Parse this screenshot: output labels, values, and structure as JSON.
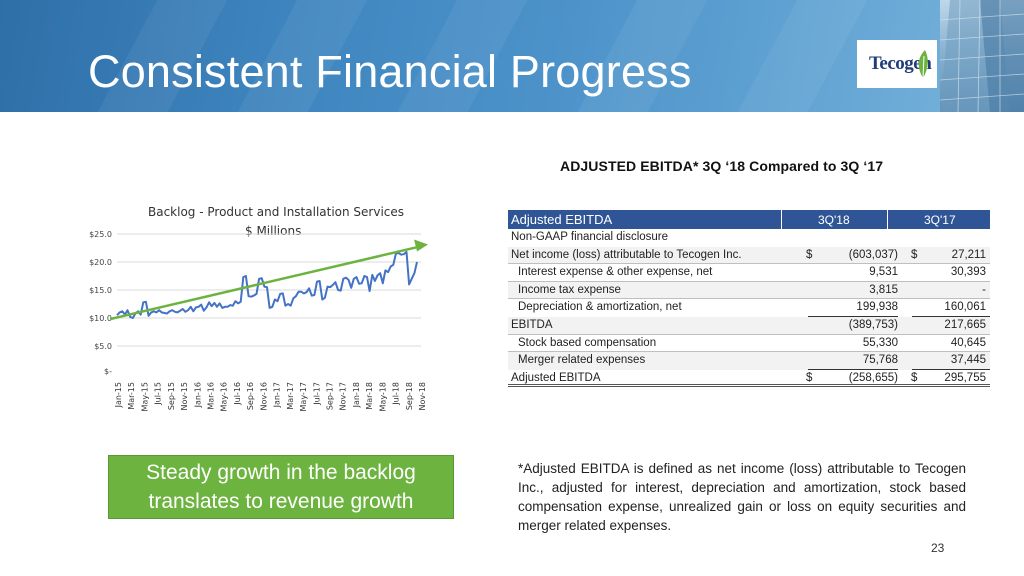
{
  "header": {
    "title": "Consistent Financial Progress",
    "logo_text": "Tecogen",
    "colors": {
      "band": "#3f86c0",
      "logo_text": "#1f3d78",
      "leaf": "#6cb33f"
    }
  },
  "chart_data": {
    "type": "line",
    "title": "Backlog - Product and Installation Services",
    "ylabel": "$ Millions",
    "xlabel": "",
    "ylim": [
      0,
      25
    ],
    "yticks": [
      0,
      5,
      10,
      15,
      20,
      25
    ],
    "ytick_labels": [
      "$-",
      "$5.0",
      "$10.0",
      "$15.0",
      "$20.0",
      "$25.0"
    ],
    "xtick_labels": [
      "Jan-15",
      "Mar-15",
      "May-15",
      "Jul-15",
      "Sep-15",
      "Nov-15",
      "Jan-16",
      "Mar-16",
      "May-16",
      "Jul-16",
      "Sep-16",
      "Nov-16",
      "Jan-17",
      "Mar-17",
      "May-17",
      "Jul-17",
      "Sep-17",
      "Nov-17",
      "Jan-18",
      "Mar-18",
      "May-18",
      "Jul-18",
      "Sep-18",
      "Nov-18"
    ],
    "grid": "horizontal",
    "series": [
      {
        "color": "#4472c4",
        "values": [
          10.5,
          11.0,
          11.2,
          10.6,
          11.4,
          10.2,
          10.0,
          10.8,
          11.2,
          10.6,
          12.8,
          12.9,
          10.4,
          11.0,
          11.2,
          11.0,
          11.4,
          11.0,
          10.9,
          10.8,
          11.2,
          11.4,
          11.1,
          11.0,
          11.3,
          11.6,
          11.1,
          11.4,
          12.0,
          11.2,
          11.9,
          12.0,
          12.4,
          11.3,
          11.9,
          12.8,
          12.1,
          12.7,
          12.0,
          12.6,
          11.8,
          12.0,
          12.0,
          12.3,
          12.2,
          13.0,
          12.6,
          12.9,
          17.3,
          17.5,
          13.9,
          13.8,
          14.0,
          14.3,
          17.0,
          17.1,
          15.6,
          15.5,
          11.8,
          12.0,
          13.3,
          13.0,
          14.3,
          14.4,
          12.2,
          12.5,
          12.2,
          13.5,
          13.9,
          14.7,
          14.7,
          14.4,
          14.6,
          15.3,
          14.0,
          14.1,
          16.5,
          16.6,
          13.3,
          13.6,
          15.6,
          15.5,
          15.9,
          16.4,
          15.0,
          14.9,
          17.0,
          17.2,
          16.8,
          15.4,
          17.0,
          17.3,
          16.1,
          16.2,
          17.5,
          17.3,
          14.8,
          17.7,
          16.6,
          17.6,
          18.0,
          16.2,
          18.5,
          18.2,
          19.2,
          19.5,
          21.5,
          21.6,
          21.3,
          21.4,
          21.8,
          16.0,
          17.0,
          18.0,
          20.0
        ]
      },
      {
        "type": "trendline",
        "color": "#6cb33f",
        "values": [
          9.8,
          22.6
        ]
      }
    ]
  },
  "ebitda": {
    "heading": "ADJUSTED EBITDA* 3Q ‘18 Compared to 3Q ‘17",
    "header": {
      "label": "Adjusted EBITDA",
      "col1": "3Q'18",
      "col2": "3Q'17"
    },
    "subheader": "Non-GAAP financial disclosure",
    "rows": [
      {
        "label": "Net income (loss) attributable to Tecogen Inc.",
        "d1": "$",
        "v1": "(603,037)",
        "d2": "$",
        "v2": "27,211"
      },
      {
        "label": "Interest expense & other expense, net",
        "d1": "",
        "v1": "9,531",
        "d2": "",
        "v2": "30,393"
      },
      {
        "label": "Income tax expense",
        "d1": "",
        "v1": "3,815",
        "d2": "",
        "v2": "-"
      },
      {
        "label": "Depreciation & amortization, net",
        "d1": "",
        "v1": "199,938",
        "d2": "",
        "v2": "160,061"
      },
      {
        "label": "EBITDA",
        "d1": "",
        "v1": "(389,753)",
        "d2": "",
        "v2": "217,665"
      },
      {
        "label": "Stock based compensation",
        "d1": "",
        "v1": "55,330",
        "d2": "",
        "v2": "40,645"
      },
      {
        "label": "Merger related expenses",
        "d1": "",
        "v1": "75,768",
        "d2": "",
        "v2": "37,445"
      },
      {
        "label": "Adjusted EBITDA",
        "d1": "$",
        "v1": "(258,655)",
        "d2": "$",
        "v2": "295,755"
      }
    ]
  },
  "callout": {
    "line1": "Steady growth in the backlog",
    "line2": "translates to revenue growth",
    "color": "#6cb33f"
  },
  "footnote": "*Adjusted EBITDA is defined as net income (loss) attributable to Tecogen Inc., adjusted for interest, depreciation and amortization, stock based compensation expense, unrealized gain or loss on equity securities and merger related expenses.",
  "page_number": "23"
}
